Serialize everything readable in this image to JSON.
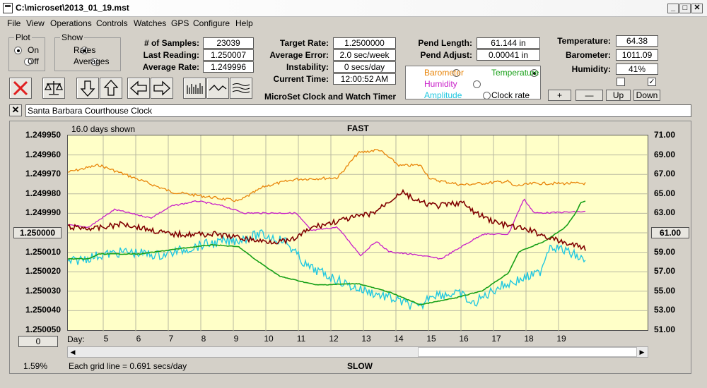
{
  "window": {
    "title": "C:\\microset\\2013_01_19.mst"
  },
  "menu": [
    "File",
    "View",
    "Operations",
    "Controls",
    "Watches",
    "GPS",
    "Configure",
    "Help"
  ],
  "plot_group": {
    "title": "Plot",
    "on": "On",
    "off": "Off"
  },
  "show_group": {
    "title": "Show",
    "rates": "Rates",
    "averages": "Averages"
  },
  "stats": {
    "samples_label": "# of Samples:",
    "samples": "23039",
    "last_label": "Last Reading:",
    "last": "1.250007",
    "avg_label": "Average Rate:",
    "avg": "1.249996",
    "target_label": "Target Rate:",
    "target": "1.2500000",
    "err_label": "Average Error:",
    "err": "2.0 sec/week",
    "instab_label": "Instability:",
    "instab": "0 secs/day",
    "time_label": "Current Time:",
    "time": "12:00:52 AM",
    "plen_label": "Pend Length:",
    "plen": "61.144 in",
    "padj_label": "Pend Adjust:",
    "padj": "0.00041 in",
    "temp_label": "Temperature:",
    "temp": "64.38",
    "baro_label": "Barometer:",
    "baro": "1011.09",
    "hum_label": "Humidity:",
    "hum": "41%"
  },
  "app_label": "MicroSet Clock and Watch Timer",
  "sensors": {
    "barometer": "Barometer",
    "temperature": "Temperature",
    "humidity": "Humidity",
    "amplitude": "Amplitude",
    "clockrate": "Clock rate",
    "colors": {
      "barometer": "#e8850a",
      "temperature": "#18a018",
      "humidity": "#c81ec8",
      "amplitude": "#22c8e0",
      "rate": "#800000"
    }
  },
  "small_buttons": [
    "+",
    "—",
    "Up",
    "Down"
  ],
  "clock_name": "Santa Barbara Courthouse Clock",
  "graph": {
    "days_shown": "16.0 days shown",
    "top": "FAST",
    "bottom": "SLOW",
    "left_ticks": [
      "1.249950",
      "1.249960",
      "1.249970",
      "1.249980",
      "1.249990",
      "1.250000",
      "1.250010",
      "1.250020",
      "1.250030",
      "1.250040",
      "1.250050"
    ],
    "center_left": "1.250000",
    "right_ticks": [
      "71.00",
      "69.00",
      "67.00",
      "65.00",
      "63.00",
      "61.00",
      "59.00",
      "57.00",
      "55.00",
      "53.00",
      "51.00"
    ],
    "center_right": "61.00",
    "day_label": "Day:",
    "days": [
      "5",
      "6",
      "7",
      "8",
      "9",
      "10",
      "11",
      "12",
      "13",
      "14",
      "15",
      "16",
      "17",
      "18",
      "19"
    ],
    "left_bottom": "0",
    "percent": "1.59%",
    "grid_note": "Each grid line = 0.691 secs/day"
  }
}
